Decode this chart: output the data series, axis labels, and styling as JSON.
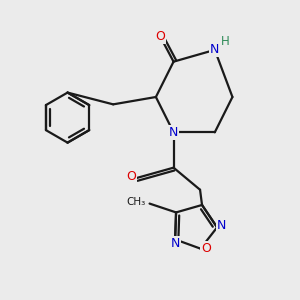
{
  "background_color": "#ebebeb",
  "bond_color": "#1a1a1a",
  "atom_colors": {
    "N": "#0000cc",
    "O": "#dd0000",
    "H": "#2e8b57",
    "C": "#1a1a1a"
  },
  "figsize": [
    3.0,
    3.0
  ],
  "dpi": 100
}
